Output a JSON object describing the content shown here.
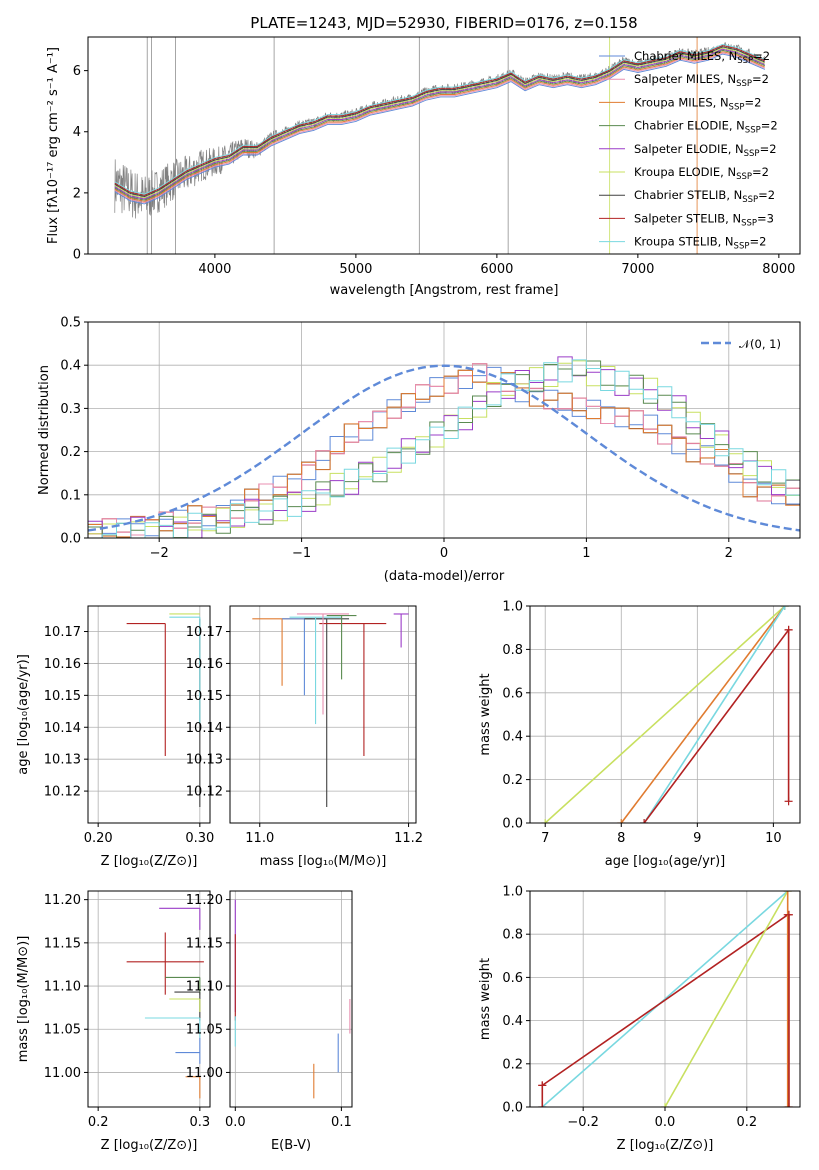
{
  "chart_data": [
    {
      "type": "line",
      "title": "PLATE=1243, MJD=52930, FIBERID=0176, z=0.158",
      "xlabel": "wavelength [Angstrom, rest frame]",
      "ylabel": "Flux [fλ10⁻¹⁷ erg cm⁻² s⁻¹ A⁻¹]",
      "xlim": [
        3100,
        8150
      ],
      "ylim": [
        0,
        7.1
      ],
      "xticks": [
        4000,
        5000,
        6000,
        7000,
        8000
      ],
      "yticks": [
        0,
        2,
        4,
        6
      ],
      "data_series": {
        "name": "data",
        "color": "#808080",
        "x": [
          3290,
          3400,
          3500,
          3600,
          3700,
          3800,
          3900,
          4000,
          4100,
          4200,
          4300,
          4400,
          4500,
          4600,
          4700,
          4800,
          4900,
          5000,
          5100,
          5200,
          5300,
          5400,
          5500,
          5600,
          5700,
          5800,
          5900,
          6000,
          6100,
          6200,
          6300,
          6400,
          6500,
          6600,
          6700,
          6800,
          6900,
          7000,
          7100,
          7200,
          7300,
          7400,
          7500,
          7600,
          7700,
          7800,
          7900
        ],
        "y": [
          2.3,
          2.0,
          1.8,
          2.1,
          2.4,
          2.6,
          2.9,
          3.0,
          3.2,
          3.5,
          3.4,
          3.8,
          4.0,
          4.2,
          4.3,
          4.5,
          4.5,
          4.6,
          4.8,
          4.9,
          5.0,
          5.1,
          5.3,
          5.4,
          5.4,
          5.5,
          5.6,
          5.7,
          5.9,
          5.6,
          5.8,
          5.7,
          5.8,
          5.7,
          5.8,
          6.0,
          6.3,
          6.2,
          6.3,
          6.4,
          6.6,
          6.5,
          6.6,
          6.8,
          6.7,
          6.5,
          6.3
        ]
      },
      "model_x": [
        3290,
        3400,
        3500,
        3600,
        3700,
        3800,
        3900,
        4000,
        4100,
        4200,
        4300,
        4400,
        4500,
        4600,
        4700,
        4800,
        4900,
        5000,
        5100,
        5200,
        5300,
        5400,
        5500,
        5600,
        5700,
        5800,
        5900,
        6000,
        6100,
        6200,
        6300,
        6400,
        6500,
        6600,
        6700,
        6800,
        6900,
        7000,
        7100,
        7200,
        7300,
        7400,
        7500,
        7600,
        7700,
        7800,
        7900
      ],
      "model_y": [
        2.2,
        1.9,
        1.8,
        2.0,
        2.3,
        2.6,
        2.8,
        3.0,
        3.1,
        3.4,
        3.4,
        3.7,
        3.9,
        4.1,
        4.2,
        4.4,
        4.4,
        4.5,
        4.7,
        4.8,
        4.9,
        5.0,
        5.2,
        5.3,
        5.3,
        5.4,
        5.5,
        5.6,
        5.8,
        5.5,
        5.7,
        5.6,
        5.7,
        5.6,
        5.7,
        5.9,
        6.2,
        6.1,
        6.2,
        6.3,
        6.5,
        6.4,
        6.5,
        6.7,
        6.6,
        6.4,
        6.2
      ],
      "vlines": [
        3520,
        3550,
        3720,
        4420,
        5450,
        6080,
        6800,
        7420
      ],
      "legend": "upper right"
    },
    {
      "type": "step",
      "xlabel": "(data-model)/error",
      "ylabel": "Normed distribution",
      "xlim": [
        -2.5,
        2.5
      ],
      "ylim": [
        0,
        0.5
      ],
      "xticks": [
        -2,
        -1,
        0,
        1,
        2
      ],
      "yticks": [
        0.0,
        0.1,
        0.2,
        0.3,
        0.4,
        0.5
      ],
      "gaussian": {
        "name": "𝒩(0, 1)",
        "color": "#5f8ad8"
      },
      "bins": [
        -2.5,
        -2.4,
        -2.3,
        -2.2,
        -2.1,
        -2.0,
        -1.9,
        -1.8,
        -1.7,
        -1.6,
        -1.5,
        -1.4,
        -1.3,
        -1.2,
        -1.1,
        -1.0,
        -0.9,
        -0.8,
        -0.7,
        -0.6,
        -0.5,
        -0.4,
        -0.3,
        -0.2,
        -0.1,
        0.0,
        0.1,
        0.2,
        0.3,
        0.4,
        0.5,
        0.6,
        0.7,
        0.8,
        0.9,
        1.0,
        1.1,
        1.2,
        1.3,
        1.4,
        1.5,
        1.6,
        1.7,
        1.8,
        1.9,
        2.0,
        2.1,
        2.2,
        2.3,
        2.4,
        2.5
      ],
      "group_a": [
        0.01,
        0.02,
        0.02,
        0.03,
        0.03,
        0.04,
        0.04,
        0.05,
        0.05,
        0.06,
        0.07,
        0.09,
        0.1,
        0.12,
        0.13,
        0.16,
        0.18,
        0.21,
        0.24,
        0.25,
        0.28,
        0.3,
        0.31,
        0.33,
        0.35,
        0.36,
        0.37,
        0.38,
        0.37,
        0.36,
        0.34,
        0.33,
        0.32,
        0.31,
        0.3,
        0.3,
        0.29,
        0.28,
        0.27,
        0.26,
        0.24,
        0.22,
        0.2,
        0.19,
        0.18,
        0.15,
        0.12,
        0.11,
        0.1,
        0.09
      ],
      "group_b": [
        0.01,
        0.01,
        0.01,
        0.02,
        0.02,
        0.02,
        0.02,
        0.03,
        0.03,
        0.04,
        0.05,
        0.06,
        0.06,
        0.07,
        0.08,
        0.09,
        0.1,
        0.12,
        0.13,
        0.15,
        0.16,
        0.18,
        0.2,
        0.22,
        0.24,
        0.26,
        0.28,
        0.3,
        0.33,
        0.35,
        0.36,
        0.37,
        0.38,
        0.39,
        0.4,
        0.38,
        0.37,
        0.36,
        0.35,
        0.34,
        0.32,
        0.3,
        0.27,
        0.24,
        0.22,
        0.19,
        0.17,
        0.15,
        0.13,
        0.11
      ]
    },
    {
      "type": "errorbar",
      "xlabel": "Z [log₁₀(Z/Z⊙)]",
      "ylabel": "age  [log₁₀(age/yr)]",
      "xlim": [
        0.19,
        0.31
      ],
      "ylim": [
        10.11,
        10.178
      ],
      "xticks": [
        0.2,
        0.3
      ],
      "yticks": [
        10.12,
        10.13,
        10.14,
        10.15,
        10.16,
        10.17
      ],
      "points": [
        {
          "x": 0.3,
          "y": 10.174,
          "xerr": 0.0,
          "ylo": 10.115,
          "yhi": 10.174,
          "color": "#404040"
        },
        {
          "x": 0.266,
          "y": 10.1725,
          "xerr": 0.038,
          "ylo": 10.131,
          "yhi": 10.1725,
          "color": "#b22222"
        },
        {
          "x": 0.3,
          "y": 10.1745,
          "xerr": 0.03,
          "ylo": 10.141,
          "yhi": 10.1745,
          "color": "#79d8e0"
        },
        {
          "x": 0.3,
          "y": 10.1755,
          "xerr": 0.03,
          "ylo": 10.1755,
          "yhi": 10.1755,
          "color": "#c8e060"
        }
      ]
    },
    {
      "type": "errorbar",
      "xlabel": "mass [log₁₀(M/M⊙)]",
      "ylabel": "",
      "xlim": [
        10.96,
        11.21
      ],
      "ylim": [
        10.11,
        10.178
      ],
      "xticks": [
        11.0,
        11.2
      ],
      "yticks": [
        10.12,
        10.13,
        10.14,
        10.15,
        10.16,
        10.17
      ],
      "points": [
        {
          "x": 11.03,
          "y": 10.174,
          "xlo": 10.99,
          "xhi": 11.07,
          "ylo": 10.153,
          "yhi": 10.174,
          "color": "#e07b30"
        },
        {
          "x": 11.06,
          "y": 10.174,
          "xlo": 11.03,
          "xhi": 11.09,
          "ylo": 10.15,
          "yhi": 10.174,
          "color": "#5f8ad8"
        },
        {
          "x": 11.09,
          "y": 10.174,
          "xlo": 11.06,
          "xhi": 11.12,
          "ylo": 10.115,
          "yhi": 10.174,
          "color": "#404040"
        },
        {
          "x": 11.14,
          "y": 10.1725,
          "xlo": 11.08,
          "xhi": 11.17,
          "ylo": 10.131,
          "yhi": 10.1725,
          "color": "#b22222"
        },
        {
          "x": 11.19,
          "y": 10.1755,
          "xlo": 11.18,
          "xhi": 11.2,
          "ylo": 10.165,
          "yhi": 10.1755,
          "color": "#9a3cc8"
        },
        {
          "x": 11.075,
          "y": 10.1745,
          "xlo": 11.04,
          "xhi": 11.11,
          "ylo": 10.141,
          "yhi": 10.1745,
          "color": "#79d8e0"
        },
        {
          "x": 11.085,
          "y": 10.1755,
          "xlo": 11.05,
          "xhi": 11.12,
          "ylo": 10.144,
          "yhi": 10.1755,
          "color": "#e88fb0"
        },
        {
          "x": 11.11,
          "y": 10.175,
          "xlo": 11.09,
          "xhi": 11.13,
          "ylo": 10.155,
          "yhi": 10.175,
          "color": "#5a8a50"
        }
      ]
    },
    {
      "type": "line",
      "xlabel": "age  [log₁₀(age/yr)]",
      "ylabel": "mass weight",
      "xlim": [
        6.8,
        10.35
      ],
      "ylim": [
        0,
        1.0
      ],
      "xticks": [
        7,
        8,
        9,
        10
      ],
      "yticks": [
        0.0,
        0.2,
        0.4,
        0.6,
        0.8,
        1.0
      ],
      "lines": [
        {
          "x": [
            7.0,
            10.15
          ],
          "y": [
            0.0,
            1.0
          ],
          "color": "#c8e060"
        },
        {
          "x": [
            8.0,
            10.15
          ],
          "y": [
            0.0,
            1.0
          ],
          "color": "#e07b30"
        },
        {
          "x": [
            8.3,
            10.15
          ],
          "y": [
            0.0,
            1.0
          ],
          "color": "#79d8e0"
        },
        {
          "x": [
            8.3,
            10.2
          ],
          "y": [
            0.0,
            0.89
          ],
          "color": "#b22222"
        },
        {
          "x": [
            10.2,
            10.2
          ],
          "y": [
            0.1,
            0.89
          ],
          "color": "#b22222"
        }
      ]
    },
    {
      "type": "errorbar",
      "xlabel": "Z [log₁₀(Z/Z⊙)]",
      "ylabel": "mass [log₁₀(M/M⊙)]",
      "xlim": [
        0.19,
        0.31
      ],
      "ylim": [
        10.96,
        11.21
      ],
      "xticks": [
        0.2,
        0.3
      ],
      "yticks": [
        11.0,
        11.05,
        11.1,
        11.15,
        11.2
      ],
      "points": [
        {
          "x": 0.3,
          "y": 11.19,
          "xlo": 0.26,
          "xhi": 0.3,
          "ylo": 11.165,
          "yhi": 11.19,
          "color": "#9a3cc8"
        },
        {
          "x": 0.266,
          "y": 11.128,
          "xlo": 0.228,
          "xhi": 0.304,
          "ylo": 11.09,
          "yhi": 11.162,
          "color": "#b22222"
        },
        {
          "x": 0.3,
          "y": 11.11,
          "xlo": 0.266,
          "xhi": 0.3,
          "ylo": 11.09,
          "yhi": 11.11,
          "color": "#5a8a50"
        },
        {
          "x": 0.3,
          "y": 11.093,
          "xlo": 0.275,
          "xhi": 0.3,
          "ylo": 11.06,
          "yhi": 11.093,
          "color": "#404040"
        },
        {
          "x": 0.3,
          "y": 11.085,
          "xlo": 0.27,
          "xhi": 0.3,
          "ylo": 11.07,
          "yhi": 11.085,
          "color": "#c8e060"
        },
        {
          "x": 0.3,
          "y": 11.063,
          "xlo": 0.246,
          "xhi": 0.3,
          "ylo": 11.04,
          "yhi": 11.063,
          "color": "#79d8e0"
        },
        {
          "x": 0.3,
          "y": 11.023,
          "xlo": 0.276,
          "xhi": 0.3,
          "ylo": 11.01,
          "yhi": 11.04,
          "color": "#5f8ad8"
        },
        {
          "x": 0.3,
          "y": 10.995,
          "xlo": 0.286,
          "xhi": 0.3,
          "ylo": 10.97,
          "yhi": 10.995,
          "color": "#e07b30"
        }
      ]
    },
    {
      "type": "errorbar",
      "xlabel": "E(B-V)",
      "ylabel": "",
      "xlim": [
        -0.005,
        0.11
      ],
      "ylim": [
        10.96,
        11.21
      ],
      "xticks": [
        0.0,
        0.1
      ],
      "yticks": [
        11.0,
        11.05,
        11.1,
        11.15,
        11.2
      ],
      "points": [
        {
          "x": 0.0,
          "y": 11.1,
          "ylo": 11.07,
          "yhi": 11.2,
          "color": "#9a3cc8"
        },
        {
          "x": 0.0,
          "y": 11.1,
          "ylo": 11.06,
          "yhi": 11.16,
          "color": "#b22222"
        },
        {
          "x": 0.0,
          "y": 11.05,
          "ylo": 11.03,
          "yhi": 11.065,
          "color": "#79d8e0"
        },
        {
          "x": 0.074,
          "y": 10.99,
          "ylo": 10.97,
          "yhi": 11.01,
          "color": "#e07b30"
        },
        {
          "x": 0.097,
          "y": 11.025,
          "ylo": 11.0,
          "yhi": 11.045,
          "color": "#5f8ad8"
        },
        {
          "x": 0.108,
          "y": 11.065,
          "ylo": 11.045,
          "yhi": 11.085,
          "color": "#e88fb0"
        }
      ]
    },
    {
      "type": "line",
      "xlabel": "Z [log₁₀(Z/Z⊙)]",
      "ylabel": "mass weight",
      "xlim": [
        -0.33,
        0.33
      ],
      "ylim": [
        0,
        1.0
      ],
      "xticks": [
        -0.2,
        0.0,
        0.2
      ],
      "yticks": [
        0.0,
        0.2,
        0.4,
        0.6,
        0.8,
        1.0
      ],
      "lines": [
        {
          "x": [
            -0.3,
            0.3
          ],
          "y": [
            0.0,
            1.0
          ],
          "color": "#79d8e0"
        },
        {
          "x": [
            -0.3,
            0.3
          ],
          "y": [
            0.1,
            0.89
          ],
          "color": "#b22222"
        },
        {
          "x": [
            -0.3,
            -0.3
          ],
          "y": [
            0.0,
            0.1
          ],
          "color": "#b22222"
        },
        {
          "x": [
            0.0,
            0.3
          ],
          "y": [
            0.0,
            1.0
          ],
          "color": "#c8e060"
        },
        {
          "x": [
            0.3,
            0.3
          ],
          "y": [
            0.0,
            1.0
          ],
          "color": "#e07b30"
        },
        {
          "x": [
            0.303,
            0.303
          ],
          "y": [
            0.0,
            0.89
          ],
          "color": "#b22222"
        }
      ]
    }
  ],
  "legend1": [
    {
      "label": "Chabrier MILES, N",
      "sub": "SSP",
      "tail": "=2",
      "color": "#5f8ad8"
    },
    {
      "label": "Salpeter MILES, N",
      "sub": "SSP",
      "tail": "=2",
      "color": "#e88fb0"
    },
    {
      "label": "Kroupa MILES, N",
      "sub": "SSP",
      "tail": "=2",
      "color": "#e07b30"
    },
    {
      "label": "Chabrier ELODIE, N",
      "sub": "SSP",
      "tail": "=2",
      "color": "#5a8a50"
    },
    {
      "label": "Salpeter ELODIE, N",
      "sub": "SSP",
      "tail": "=2",
      "color": "#9a3cc8"
    },
    {
      "label": "Kroupa ELODIE, N",
      "sub": "SSP",
      "tail": "=2",
      "color": "#c8e060"
    },
    {
      "label": "Chabrier STELIB, N",
      "sub": "SSP",
      "tail": "=2",
      "color": "#404040"
    },
    {
      "label": "Salpeter STELIB, N",
      "sub": "SSP",
      "tail": "=3",
      "color": "#b22222"
    },
    {
      "label": "Kroupa STELIB, N",
      "sub": "SSP",
      "tail": "=2",
      "color": "#79d8e0"
    }
  ],
  "legend2": {
    "label": "𝒩(0, 1)",
    "color": "#5f8ad8"
  }
}
